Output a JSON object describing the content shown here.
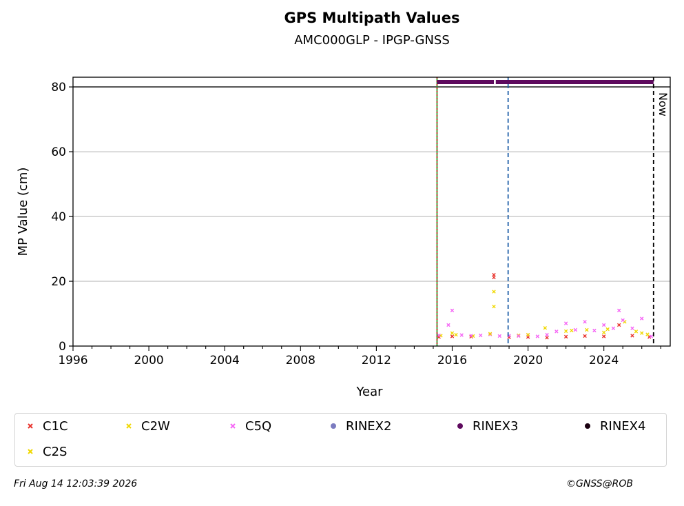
{
  "header": {
    "title": "GPS Multipath Values",
    "subtitle": "AMC000GLP - IPGP-GNSS"
  },
  "chart_data": {
    "type": "scatter",
    "title": "GPS Multipath Values",
    "subtitle": "AMC000GLP - IPGP-GNSS",
    "xlabel": "Year",
    "ylabel": "MP Value (cm)",
    "xlim": [
      1996,
      2027.5
    ],
    "ylim": [
      0,
      83
    ],
    "x_ticks": [
      1996,
      2000,
      2004,
      2008,
      2012,
      2016,
      2020,
      2024
    ],
    "y_ticks": [
      0,
      20,
      40,
      60,
      80
    ],
    "grid": "horizontal",
    "horizontal_line": 80,
    "vertical_lines": [
      {
        "x": 2015.2,
        "color": "#2ca02c",
        "style": "solid"
      },
      {
        "x": 2015.2,
        "color": "#d62728",
        "style": "dotted"
      },
      {
        "x": 2018.95,
        "color": "#1f5fa8",
        "style": "dashed"
      },
      {
        "x": 2026.62,
        "color": "#000000",
        "style": "dashed",
        "label": "Now"
      }
    ],
    "rinex_bars": [
      {
        "name": "RINEX3",
        "start": 2015.2,
        "end": 2018.2,
        "y": 81.5,
        "color": "#5e0a5e"
      },
      {
        "name": "RINEX3",
        "start": 2018.3,
        "end": 2026.62,
        "y": 81.5,
        "color": "#5e0a5e"
      }
    ],
    "series": [
      {
        "name": "C1C",
        "color": "#e8322b",
        "marker": "x",
        "x": [
          2015.3,
          2016.0,
          2017.0,
          2018.2,
          2018.2,
          2019.0,
          2020.0,
          2021.0,
          2022.0,
          2023.0,
          2024.0,
          2024.8,
          2025.5,
          2026.4
        ],
        "y": [
          2.8,
          3.0,
          2.9,
          22.0,
          21.2,
          2.7,
          2.8,
          2.6,
          2.9,
          3.1,
          3.0,
          6.5,
          3.2,
          2.8
        ]
      },
      {
        "name": "C2W",
        "color": "#f0d800",
        "marker": "x",
        "x": [
          2015.4,
          2016.2,
          2017.1,
          2018.2,
          2018.2,
          2019.5,
          2020.9,
          2022.3,
          2023.1,
          2024.2,
          2025.1,
          2025.7,
          2026.3
        ],
        "y": [
          3.2,
          3.5,
          3.1,
          16.8,
          12.2,
          3.3,
          5.6,
          4.8,
          5.0,
          5.2,
          7.5,
          4.5,
          3.6
        ]
      },
      {
        "name": "C5Q",
        "color": "#f564f5",
        "marker": "x",
        "x": [
          2015.3,
          2015.8,
          2016.0,
          2016.5,
          2017.0,
          2017.5,
          2018.0,
          2018.5,
          2019.0,
          2019.5,
          2020.0,
          2020.5,
          2021.0,
          2021.5,
          2022.0,
          2022.5,
          2023.0,
          2023.5,
          2024.0,
          2024.5,
          2024.8,
          2025.0,
          2025.5,
          2026.0,
          2026.5
        ],
        "y": [
          3.3,
          6.5,
          11.0,
          3.4,
          3.2,
          3.3,
          3.6,
          3.1,
          3.2,
          3.1,
          3.4,
          3.0,
          3.5,
          4.5,
          7.0,
          5.0,
          7.5,
          4.8,
          6.5,
          5.5,
          11.0,
          8.0,
          5.5,
          8.5,
          3.0
        ]
      },
      {
        "name": "C2S",
        "color": "#f0d800",
        "marker": "x",
        "x": [
          2016.0,
          2018.0,
          2020.0,
          2022.0,
          2024.0,
          2026.0
        ],
        "y": [
          4.0,
          3.8,
          3.5,
          4.6,
          4.2,
          4.0
        ]
      }
    ],
    "legend": {
      "placement": "bottom",
      "entries": [
        {
          "label": "C1C",
          "color": "#e8322b",
          "marker": "x"
        },
        {
          "label": "C2W",
          "color": "#f0d800",
          "marker": "x"
        },
        {
          "label": "C5Q",
          "color": "#f564f5",
          "marker": "x"
        },
        {
          "label": "RINEX2",
          "color": "#7b7bc0",
          "marker": "dot"
        },
        {
          "label": "RINEX3",
          "color": "#5e0a5e",
          "marker": "dot"
        },
        {
          "label": "RINEX4",
          "color": "#1a0010",
          "marker": "dot"
        },
        {
          "label": "C2S",
          "color": "#f0d800",
          "marker": "x"
        }
      ]
    }
  },
  "footer": {
    "timestamp": "Fri Aug 14 12:03:39 2026",
    "copyright": "©GNSS@ROB"
  }
}
